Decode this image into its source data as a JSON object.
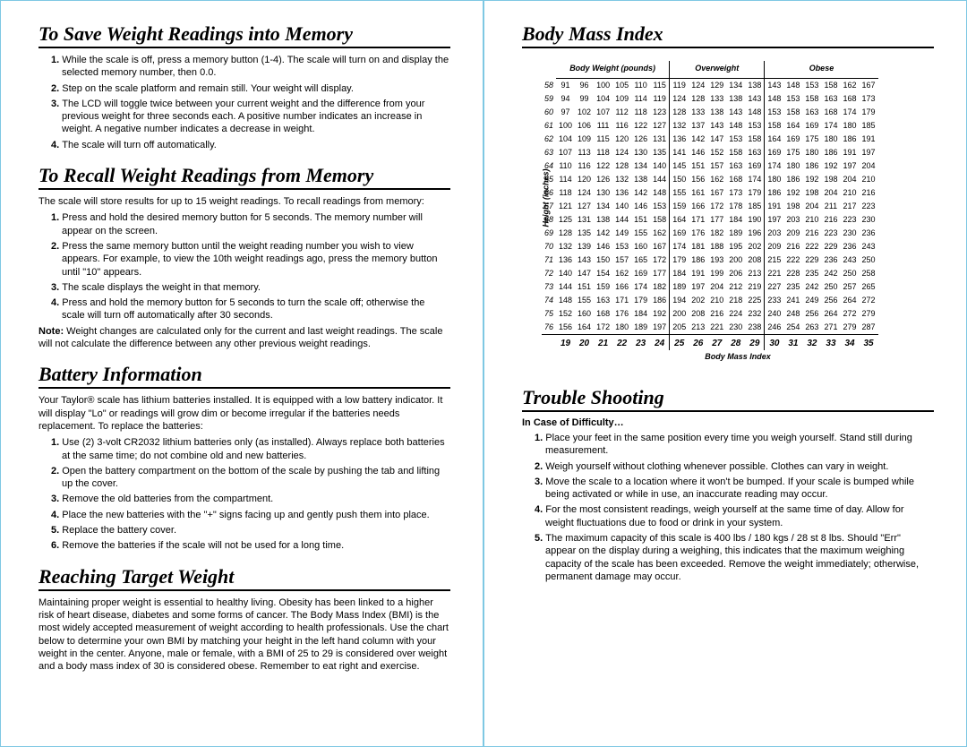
{
  "left": {
    "s1": {
      "title": "To Save Weight Readings into Memory",
      "items": [
        "While the scale is off, press a memory button (1-4). The scale will turn on and display the selected memory number, then 0.0.",
        "Step on the scale platform and remain still. Your weight will display.",
        "The LCD will toggle twice between your current weight and the difference from your previous weight for three seconds each. A positive number indicates an increase in weight. A negative number indicates a decrease in weight.",
        "The scale will turn off automatically."
      ]
    },
    "s2": {
      "title": "To Recall Weight Readings from Memory",
      "intro": "The scale will store results for up to 15 weight readings. To recall readings from memory:",
      "items": [
        "Press and hold the desired memory button for 5 seconds. The memory number will appear on the screen.",
        "Press the same memory button until the weight reading number you wish to view appears. For example, to view the 10th weight readings ago, press the memory button until \"10\" appears.",
        "The scale displays the weight in that memory.",
        "Press and hold the memory button for 5 seconds to turn the scale off; otherwise the scale will turn off automatically after 30 seconds."
      ],
      "note_label": "Note:",
      "note": " Weight changes are calculated only for the current and last weight readings. The scale will not calculate the difference between any other previous weight readings."
    },
    "s3": {
      "title": "Battery Information",
      "intro": "Your Taylor® scale has lithium batteries installed. It is equipped with a low battery indicator. It will display \"Lo\" or readings will grow dim or become irregular if the batteries needs replacement. To replace the batteries:",
      "items": [
        "Use (2) 3-volt CR2032 lithium batteries only (as installed). Always replace both batteries at the same time; do not combine old and new batteries.",
        "Open the battery compartment on the bottom of the scale by pushing the tab and lifting up the cover.",
        "Remove the old batteries from the compartment.",
        "Place the new batteries with the \"+\" signs facing up and gently push them into place.",
        "Replace the battery cover.",
        "Remove the batteries if the scale will not be used for a long time."
      ]
    },
    "s4": {
      "title": "Reaching Target Weight",
      "intro": "Maintaining proper weight is essential to healthy living. Obesity has been linked to a higher risk of heart disease, diabetes and some forms of cancer. The Body Mass Index (BMI) is the most widely accepted measurement of weight according to health professionals. Use the chart below to determine your own BMI by matching your height in the left hand column with your weight in the center. Anyone, male or female, with a BMI of 25 to 29 is considered over weight and a body mass index of 30 is considered obese. Remember to eat right and exercise."
    }
  },
  "right": {
    "s5": {
      "title": "Body Mass Index"
    },
    "bmi": {
      "head1": "Body Weight (pounds)",
      "head2": "Overweight",
      "head3": "Obese",
      "ylabel": "Height (inches)",
      "xlabel": "Body Mass Index",
      "heights": [
        "58",
        "59",
        "60",
        "61",
        "62",
        "63",
        "64",
        "65",
        "66",
        "67",
        "68",
        "69",
        "70",
        "71",
        "72",
        "73",
        "74",
        "75",
        "76"
      ],
      "g1": [
        [
          "91",
          "96",
          "100",
          "105",
          "110",
          "115"
        ],
        [
          "94",
          "99",
          "104",
          "109",
          "114",
          "119"
        ],
        [
          "97",
          "102",
          "107",
          "112",
          "118",
          "123"
        ],
        [
          "100",
          "106",
          "111",
          "116",
          "122",
          "127"
        ],
        [
          "104",
          "109",
          "115",
          "120",
          "126",
          "131"
        ],
        [
          "107",
          "113",
          "118",
          "124",
          "130",
          "135"
        ],
        [
          "110",
          "116",
          "122",
          "128",
          "134",
          "140"
        ],
        [
          "114",
          "120",
          "126",
          "132",
          "138",
          "144"
        ],
        [
          "118",
          "124",
          "130",
          "136",
          "142",
          "148"
        ],
        [
          "121",
          "127",
          "134",
          "140",
          "146",
          "153"
        ],
        [
          "125",
          "131",
          "138",
          "144",
          "151",
          "158"
        ],
        [
          "128",
          "135",
          "142",
          "149",
          "155",
          "162"
        ],
        [
          "132",
          "139",
          "146",
          "153",
          "160",
          "167"
        ],
        [
          "136",
          "143",
          "150",
          "157",
          "165",
          "172"
        ],
        [
          "140",
          "147",
          "154",
          "162",
          "169",
          "177"
        ],
        [
          "144",
          "151",
          "159",
          "166",
          "174",
          "182"
        ],
        [
          "148",
          "155",
          "163",
          "171",
          "179",
          "186"
        ],
        [
          "152",
          "160",
          "168",
          "176",
          "184",
          "192"
        ],
        [
          "156",
          "164",
          "172",
          "180",
          "189",
          "197"
        ]
      ],
      "g2": [
        [
          "119",
          "124",
          "129",
          "134",
          "138"
        ],
        [
          "124",
          "128",
          "133",
          "138",
          "143"
        ],
        [
          "128",
          "133",
          "138",
          "143",
          "148"
        ],
        [
          "132",
          "137",
          "143",
          "148",
          "153"
        ],
        [
          "136",
          "142",
          "147",
          "153",
          "158"
        ],
        [
          "141",
          "146",
          "152",
          "158",
          "163"
        ],
        [
          "145",
          "151",
          "157",
          "163",
          "169"
        ],
        [
          "150",
          "156",
          "162",
          "168",
          "174"
        ],
        [
          "155",
          "161",
          "167",
          "173",
          "179"
        ],
        [
          "159",
          "166",
          "172",
          "178",
          "185"
        ],
        [
          "164",
          "171",
          "177",
          "184",
          "190"
        ],
        [
          "169",
          "176",
          "182",
          "189",
          "196"
        ],
        [
          "174",
          "181",
          "188",
          "195",
          "202"
        ],
        [
          "179",
          "186",
          "193",
          "200",
          "208"
        ],
        [
          "184",
          "191",
          "199",
          "206",
          "213"
        ],
        [
          "189",
          "197",
          "204",
          "212",
          "219"
        ],
        [
          "194",
          "202",
          "210",
          "218",
          "225"
        ],
        [
          "200",
          "208",
          "216",
          "224",
          "232"
        ],
        [
          "205",
          "213",
          "221",
          "230",
          "238"
        ]
      ],
      "g3": [
        [
          "143",
          "148",
          "153",
          "158",
          "162",
          "167"
        ],
        [
          "148",
          "153",
          "158",
          "163",
          "168",
          "173"
        ],
        [
          "153",
          "158",
          "163",
          "168",
          "174",
          "179"
        ],
        [
          "158",
          "164",
          "169",
          "174",
          "180",
          "185"
        ],
        [
          "164",
          "169",
          "175",
          "180",
          "186",
          "191"
        ],
        [
          "169",
          "175",
          "180",
          "186",
          "191",
          "197"
        ],
        [
          "174",
          "180",
          "186",
          "192",
          "197",
          "204"
        ],
        [
          "180",
          "186",
          "192",
          "198",
          "204",
          "210"
        ],
        [
          "186",
          "192",
          "198",
          "204",
          "210",
          "216"
        ],
        [
          "191",
          "198",
          "204",
          "211",
          "217",
          "223"
        ],
        [
          "197",
          "203",
          "210",
          "216",
          "223",
          "230"
        ],
        [
          "203",
          "209",
          "216",
          "223",
          "230",
          "236"
        ],
        [
          "209",
          "216",
          "222",
          "229",
          "236",
          "243"
        ],
        [
          "215",
          "222",
          "229",
          "236",
          "243",
          "250"
        ],
        [
          "221",
          "228",
          "235",
          "242",
          "250",
          "258"
        ],
        [
          "227",
          "235",
          "242",
          "250",
          "257",
          "265"
        ],
        [
          "233",
          "241",
          "249",
          "256",
          "264",
          "272"
        ],
        [
          "240",
          "248",
          "256",
          "264",
          "272",
          "279"
        ],
        [
          "246",
          "254",
          "263",
          "271",
          "279",
          "287"
        ]
      ],
      "bmirow": [
        "19",
        "20",
        "21",
        "22",
        "23",
        "24",
        "25",
        "26",
        "27",
        "28",
        "29",
        "30",
        "31",
        "32",
        "33",
        "34",
        "35"
      ]
    },
    "s6": {
      "title": "Trouble Shooting",
      "sub": "In Case of Difficulty…",
      "items": [
        "Place your feet in the same position every time you weigh yourself. Stand still during measurement.",
        "Weigh yourself without clothing whenever possible. Clothes can vary in weight.",
        "Move the scale to a location where it won't be bumped. If your scale is bumped while being activated or while in use, an inaccurate reading may occur.",
        "For the most consistent readings, weigh yourself at the same time of day. Allow for weight fluctuations due to food or drink in your system.",
        "The maximum capacity of this scale is 400 lbs / 180 kgs / 28 st 8 lbs. Should \"Err\" appear on the display during a weighing, this indicates that the maximum weighing capacity of the scale has been exceeded. Remove the weight immediately; otherwise, permanent damage may occur."
      ]
    }
  }
}
